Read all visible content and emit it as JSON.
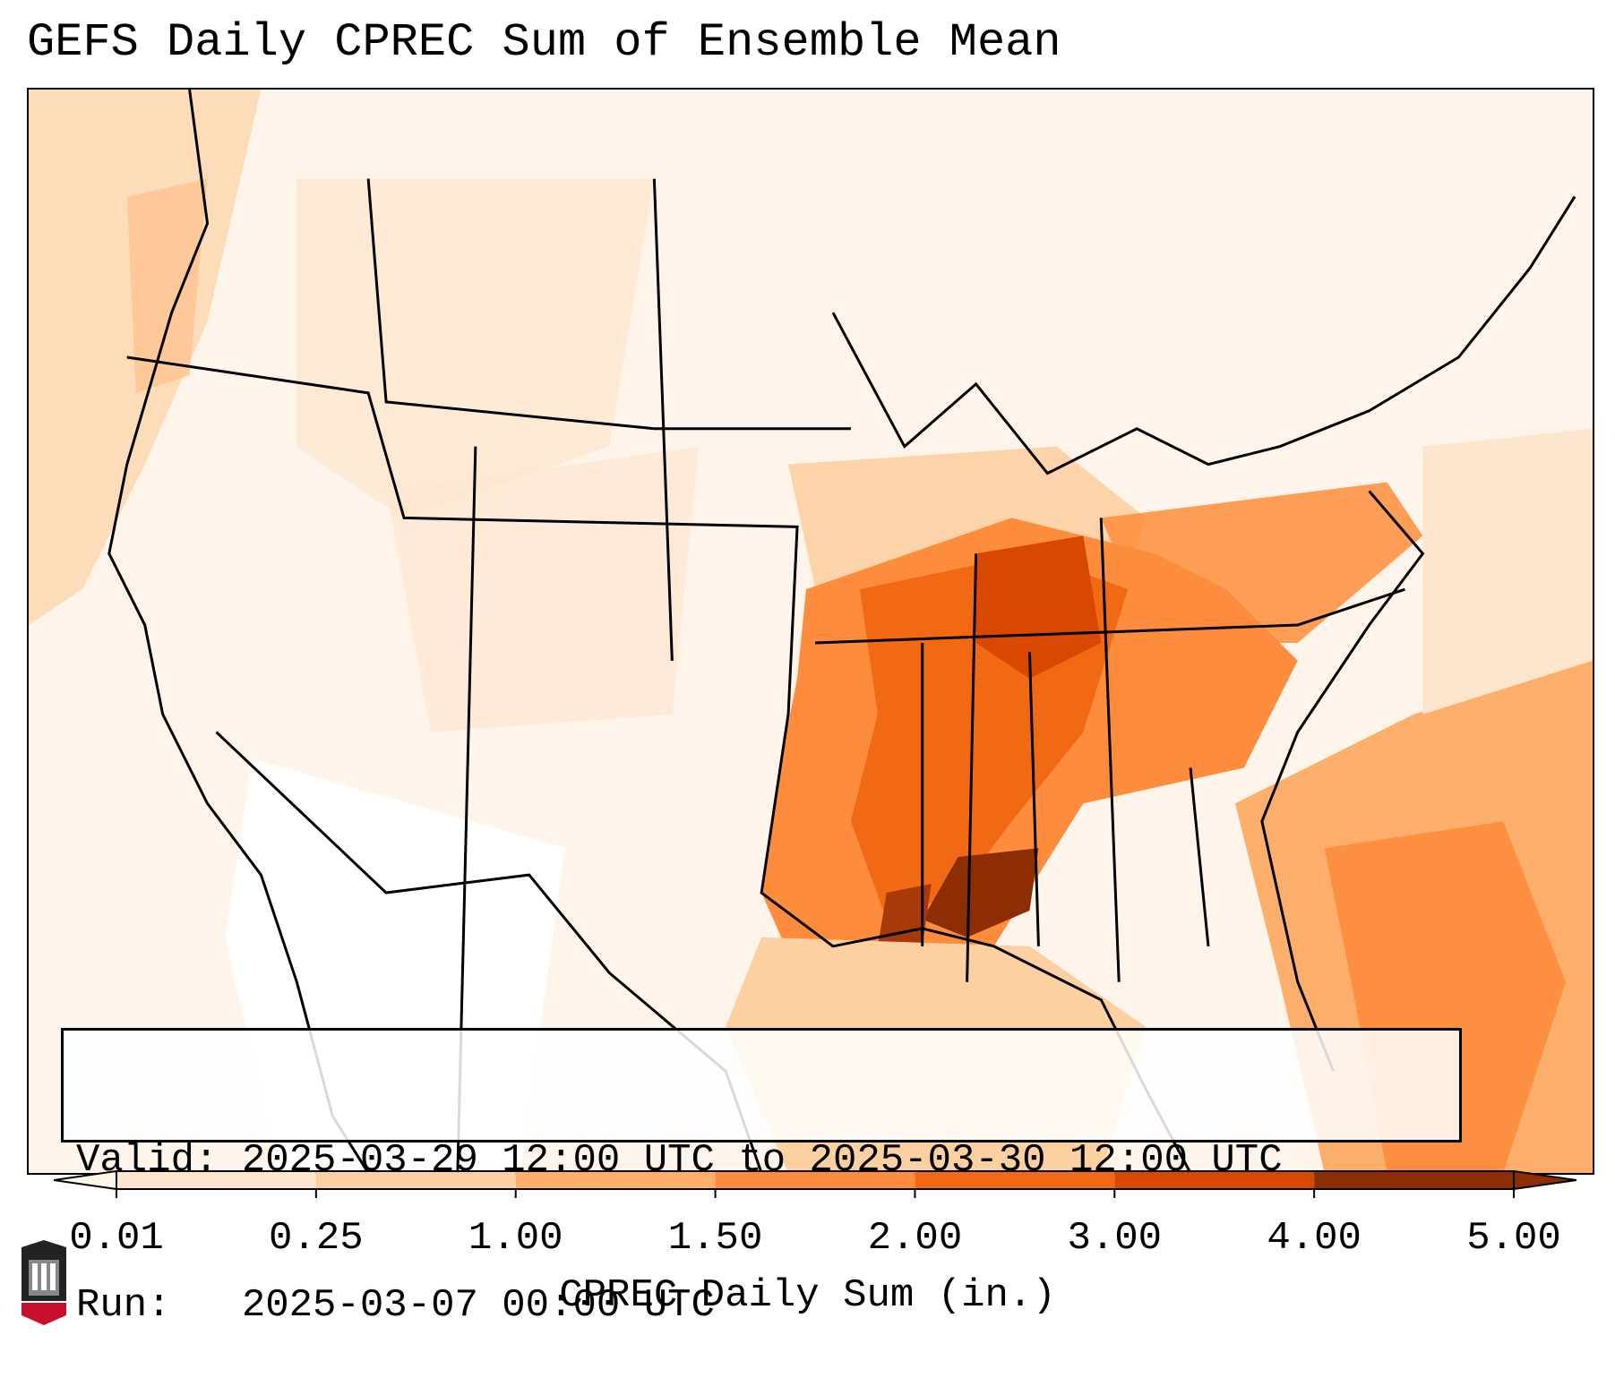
{
  "title": "GEFS Daily CPREC Sum of Ensemble Mean",
  "info": {
    "valid_line": "Valid: 2025-03-29 12:00 UTC to 2025-03-30 12:00 UTC",
    "run_line": "Run:   2025-03-07 00:00 UTC"
  },
  "colorbar": {
    "label": "CPREC Daily Sum (in.)",
    "ticks": [
      "0.01",
      "0.25",
      "1.00",
      "1.50",
      "2.00",
      "3.00",
      "4.00",
      "5.00"
    ],
    "colors": [
      "#fff5eb",
      "#fee6ce",
      "#fdd0a2",
      "#fdae6b",
      "#fd8d3c",
      "#f16913",
      "#d94801",
      "#8c2d04"
    ]
  },
  "logo": {
    "name": "NIU",
    "icon": "niu-logo-icon"
  }
}
